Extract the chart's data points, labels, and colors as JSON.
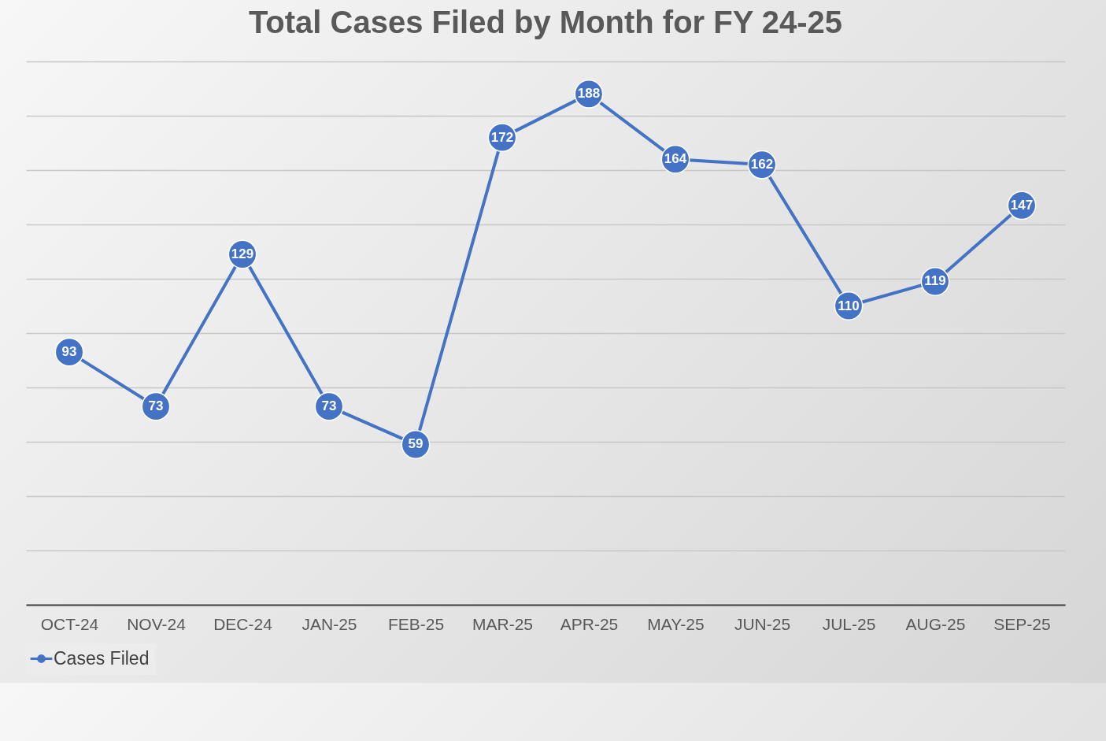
{
  "chart_data": {
    "type": "line",
    "title": "Total Cases Filed by Month for FY 24-25",
    "categories": [
      "OCT-24",
      "NOV-24",
      "DEC-24",
      "JAN-25",
      "FEB-25",
      "MAR-25",
      "APR-25",
      "MAY-25",
      "JUN-25",
      "JUL-25",
      "AUG-25",
      "SEP-25"
    ],
    "series": [
      {
        "name": "Cases Filed",
        "color": "#4472c4",
        "values": [
          93,
          73,
          129,
          73,
          59,
          172,
          188,
          164,
          162,
          110,
          119,
          147
        ]
      }
    ],
    "ylim": [
      0,
      200
    ],
    "yticks": [
      {
        "value": 0,
        "label": null
      },
      {
        "value": 20,
        "label": null
      },
      {
        "value": 40,
        "label": null
      },
      {
        "value": 60,
        "label": null
      },
      {
        "value": 80,
        "label": null
      },
      {
        "value": 100,
        "label": null
      },
      {
        "value": 120,
        "label": null
      },
      {
        "value": 140,
        "label": null
      },
      {
        "value": 160,
        "label": null
      },
      {
        "value": 180,
        "label": null
      },
      {
        "value": 200,
        "label": null
      }
    ],
    "tick_labels": "x",
    "grid": "y",
    "legend": "bottom",
    "marker": "circle",
    "line_style": "solid",
    "data_labels": true
  }
}
